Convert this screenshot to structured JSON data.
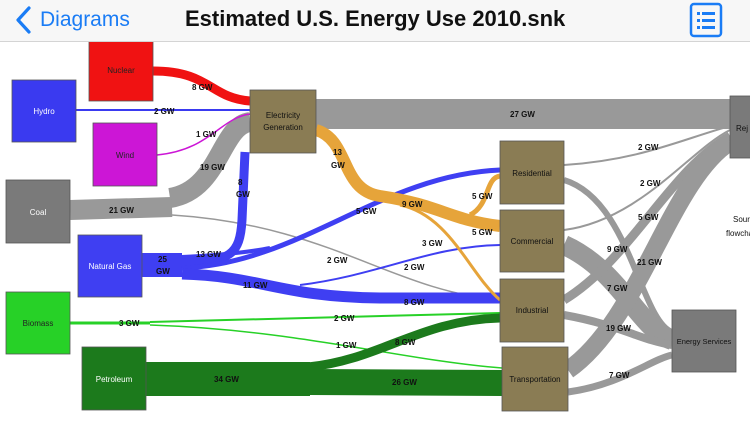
{
  "nav": {
    "back_label": "Diagrams",
    "title": "Estimated U.S. Energy Use 2010.snk"
  },
  "nodes": {
    "nuclear": "Nuclear",
    "hydro": "Hydro",
    "wind": "Wind",
    "coal": "Coal",
    "natural_gas": "Natural Gas",
    "biomass": "Biomass",
    "petroleum": "Petroleum",
    "electricity_1": "Electricity",
    "electricity_2": "Generation",
    "residential": "Residential",
    "commercial": "Commercial",
    "industrial": "Industrial",
    "transportation": "Transportation",
    "energy_services": "Energy Services",
    "rejected": "Rej"
  },
  "side_text": {
    "line1": "Sour",
    "line2": "flowcha"
  },
  "flow_labels": {
    "nuclear_elec": "8 GW",
    "hydro_elec": "2 GW",
    "wind_elec": "1 GW",
    "coal_elec": "19 GW",
    "coal_out": "21 GW",
    "elec_rej": "27 GW",
    "elec_res_a": "13",
    "elec_res_b": "GW",
    "ng_elec_a": "8",
    "ng_elec_b": "GW",
    "ng_out_a": "25",
    "ng_out_b": "GW",
    "ng_13": "13 GW",
    "ng_res": "5 GW",
    "elec_com": "9 GW",
    "elec_ind_a": "5 GW",
    "elec_ind_b": "5 GW",
    "elec_ind_c": "3 GW",
    "ng_com": "2 GW",
    "ng_ind": "11 GW",
    "coal_ind": "2 GW",
    "ng_ind_end": "8 GW",
    "bio_out": "3 GW",
    "bio_ind": "2 GW",
    "bio_trans": "1 GW",
    "pet_out": "34 GW",
    "pet_ind": "8 GW",
    "pet_trans": "26 GW",
    "res_rej": "2 GW",
    "com_rej": "2 GW",
    "res_es": "5 GW",
    "ind_rej": "9 GW",
    "com_es": "21 GW",
    "ind_es": "7 GW",
    "trans_rej": "19 GW",
    "trans_es": "7 GW"
  },
  "colors": {
    "nuclear": "#f01212",
    "hydro": "#3a3af0",
    "wind": "#cc16d6",
    "coal": "#7a7a7a",
    "natural_gas": "#3f3ff2",
    "biomass": "#27d127",
    "petroleum": "#1c7a1c",
    "electricity": "#8a7c54",
    "elec_flow": "#e6a43a",
    "sector": "#8a7c54",
    "gray_flow": "#999999"
  }
}
